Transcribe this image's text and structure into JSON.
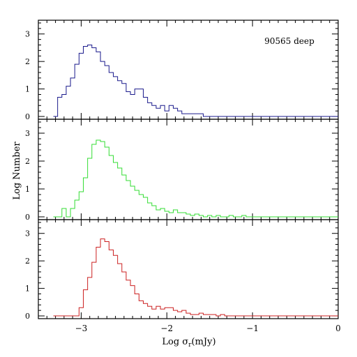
{
  "chart_data": [
    {
      "type": "step",
      "panel": "top",
      "annotation": "90565 deep",
      "color": "#1a1a8c",
      "x": [
        -3.3,
        -3.25,
        -3.2,
        -3.15,
        -3.1,
        -3.05,
        -3.0,
        -2.95,
        -2.9,
        -2.85,
        -2.8,
        -2.75,
        -2.7,
        -2.65,
        -2.6,
        -2.55,
        -2.5,
        -2.45,
        -2.4,
        -2.35,
        -2.3,
        -2.25,
        -2.2,
        -2.15,
        -2.1,
        -2.05,
        -2.0,
        -1.95,
        -1.9,
        -1.85,
        -1.8,
        -1.75,
        -1.7,
        -1.65,
        -1.6,
        -1.55,
        -1.5,
        -1.45,
        -1.4,
        -1.35,
        -1.3,
        -1.25,
        -1.2,
        -1.15,
        -1.1,
        -1.05,
        -1.0,
        -0.95,
        -0.9,
        -0.85,
        -0.8,
        -0.75,
        -0.7,
        -0.65,
        -0.6,
        -0.55,
        -0.5,
        -0.45,
        -0.4,
        -0.35,
        -0.3,
        -0.25,
        -0.2,
        -0.15,
        -0.1,
        -0.05,
        0.0
      ],
      "y": [
        0.0,
        0.7,
        0.8,
        1.1,
        1.4,
        1.9,
        2.3,
        2.55,
        2.6,
        2.5,
        2.35,
        2.0,
        1.85,
        1.6,
        1.45,
        1.3,
        1.2,
        0.9,
        0.8,
        1.0,
        1.0,
        0.7,
        0.5,
        0.4,
        0.3,
        0.4,
        0.2,
        0.4,
        0.3,
        0.2,
        0.1,
        0.1,
        0.1,
        0.1,
        0.1,
        0.0,
        0.0,
        0.0,
        0.0,
        0.0,
        0.0,
        0.0,
        0.0,
        0.0,
        0.0,
        0.0,
        0.0,
        0.0,
        0.0,
        0.0,
        0.0,
        0.0,
        0.0,
        0.0,
        0.0,
        0.0,
        0.0,
        0.0,
        0.0,
        0.0,
        0.0,
        0.0,
        0.0,
        0.0,
        0.0,
        0.0,
        0.0
      ],
      "xlim": [
        -3.5,
        0
      ],
      "ylim": [
        -0.1,
        3.5
      ],
      "yticks": [
        "0",
        "1",
        "2",
        "3"
      ]
    },
    {
      "type": "step",
      "panel": "middle",
      "color": "#33dd33",
      "x": [
        -3.3,
        -3.25,
        -3.2,
        -3.15,
        -3.1,
        -3.05,
        -3.0,
        -2.95,
        -2.9,
        -2.85,
        -2.8,
        -2.75,
        -2.7,
        -2.65,
        -2.6,
        -2.55,
        -2.5,
        -2.45,
        -2.4,
        -2.35,
        -2.3,
        -2.25,
        -2.2,
        -2.15,
        -2.1,
        -2.05,
        -2.0,
        -1.95,
        -1.9,
        -1.85,
        -1.8,
        -1.75,
        -1.7,
        -1.65,
        -1.6,
        -1.55,
        -1.5,
        -1.45,
        -1.4,
        -1.35,
        -1.3,
        -1.25,
        -1.2,
        -1.15,
        -1.1,
        -1.05,
        -1.0,
        -0.95,
        -0.9,
        -0.85,
        -0.8,
        -0.75,
        -0.7,
        -0.65,
        -0.6,
        -0.55,
        -0.5,
        -0.45,
        -0.4,
        -0.35,
        -0.3,
        -0.25,
        -0.2,
        -0.15,
        -0.1,
        -0.05,
        0.0
      ],
      "y": [
        0.0,
        0.0,
        0.3,
        0.0,
        0.3,
        0.6,
        0.9,
        1.4,
        2.1,
        2.6,
        2.75,
        2.7,
        2.5,
        2.2,
        1.95,
        1.75,
        1.5,
        1.3,
        1.1,
        0.95,
        0.8,
        0.7,
        0.5,
        0.4,
        0.25,
        0.3,
        0.2,
        0.15,
        0.25,
        0.15,
        0.15,
        0.1,
        0.05,
        0.1,
        0.05,
        0.0,
        0.05,
        0.0,
        0.05,
        0.0,
        0.0,
        0.05,
        0.0,
        0.0,
        0.05,
        0.0,
        0.0,
        0.0,
        0.0,
        0.0,
        0.0,
        0.0,
        0.0,
        0.0,
        0.0,
        0.0,
        0.0,
        0.0,
        0.0,
        0.0,
        0.0,
        0.0,
        0.0,
        0.0,
        0.0,
        0.0,
        0.0
      ],
      "xlim": [
        -3.5,
        0
      ],
      "ylim": [
        -0.1,
        3.5
      ],
      "yticks": [
        "0",
        "1",
        "2",
        "3"
      ]
    },
    {
      "type": "step",
      "panel": "bottom",
      "color": "#cc2020",
      "x": [
        -3.3,
        -3.25,
        -3.2,
        -3.15,
        -3.1,
        -3.05,
        -3.0,
        -2.95,
        -2.9,
        -2.85,
        -2.8,
        -2.75,
        -2.7,
        -2.65,
        -2.6,
        -2.55,
        -2.5,
        -2.45,
        -2.4,
        -2.35,
        -2.3,
        -2.25,
        -2.2,
        -2.15,
        -2.1,
        -2.05,
        -2.0,
        -1.95,
        -1.9,
        -1.85,
        -1.8,
        -1.75,
        -1.7,
        -1.65,
        -1.6,
        -1.55,
        -1.5,
        -1.45,
        -1.4,
        -1.35,
        -1.3,
        -1.25,
        -1.2,
        -1.15,
        -1.1,
        -1.05,
        -1.0,
        -0.95,
        -0.9,
        -0.85,
        -0.8,
        -0.75,
        -0.7,
        -0.65,
        -0.6,
        -0.55,
        -0.5,
        -0.45,
        -0.4,
        -0.35,
        -0.3,
        -0.25,
        -0.2,
        -0.15,
        -0.1,
        -0.05,
        0.0
      ],
      "y": [
        0.0,
        0.0,
        0.0,
        0.0,
        0.0,
        0.0,
        0.3,
        0.95,
        1.4,
        1.95,
        2.5,
        2.8,
        2.7,
        2.4,
        2.2,
        1.9,
        1.6,
        1.3,
        1.1,
        0.8,
        0.55,
        0.45,
        0.35,
        0.25,
        0.35,
        0.25,
        0.3,
        0.3,
        0.2,
        0.15,
        0.2,
        0.1,
        0.05,
        0.05,
        0.1,
        0.05,
        0.05,
        0.05,
        0.0,
        0.05,
        0.0,
        0.0,
        0.0,
        0.0,
        0.0,
        0.0,
        0.0,
        0.0,
        0.0,
        0.0,
        0.0,
        0.0,
        0.0,
        0.0,
        0.0,
        0.0,
        0.0,
        0.0,
        0.0,
        0.0,
        0.0,
        0.0,
        0.0,
        0.0,
        0.0,
        0.0,
        0.0
      ],
      "xlim": [
        -3.5,
        0
      ],
      "ylim": [
        -0.1,
        3.5
      ],
      "yticks": [
        "0",
        "1",
        "2",
        "3"
      ],
      "xticks": [
        "−3",
        "−2",
        "−1",
        "0"
      ]
    }
  ],
  "labels": {
    "ylabel": "Log Number",
    "xlabel_prefix": "Log ",
    "xlabel_sigma": "σ",
    "xlabel_sub": "r",
    "xlabel_suffix": "(mJy)"
  }
}
